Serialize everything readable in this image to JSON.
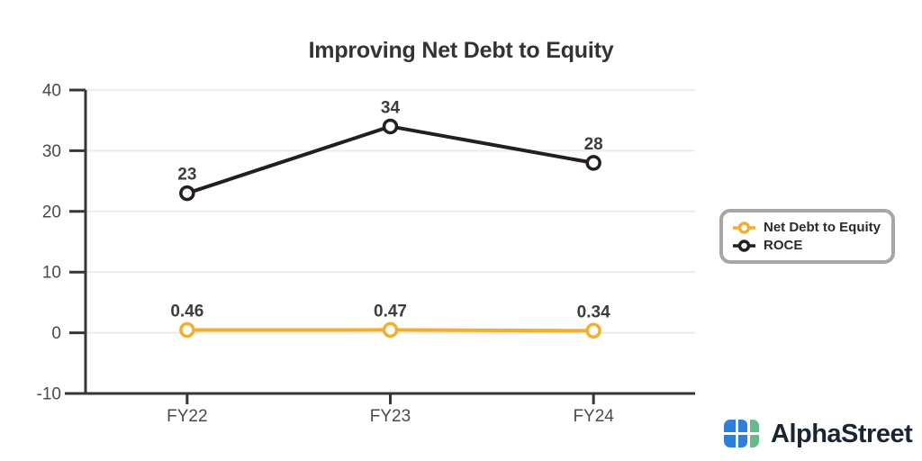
{
  "chart_data": {
    "type": "line",
    "title": "Improving Net Debt to Equity",
    "categories": [
      "FY22",
      "FY23",
      "FY24"
    ],
    "series": [
      {
        "name": "Net Debt to Equity",
        "values": [
          0.46,
          0.47,
          0.34
        ],
        "labels": [
          "0.46",
          "0.47",
          "0.34"
        ],
        "color": "#F2AE2F"
      },
      {
        "name": "ROCE",
        "values": [
          23,
          34,
          28
        ],
        "labels": [
          "23",
          "34",
          "28"
        ],
        "color": "#241F1E"
      }
    ],
    "xlabel": "",
    "ylabel": "",
    "ylim": [
      -10,
      40
    ],
    "yticks": [
      40,
      30,
      20,
      10,
      0,
      -10
    ],
    "grid": true,
    "legend_position": "right",
    "marker_style": "open-circle"
  },
  "legend": {
    "items": [
      {
        "label": "Net Debt to Equity",
        "color": "#F2AE2F"
      },
      {
        "label": "ROCE",
        "color": "#241F1E"
      }
    ]
  },
  "branding": {
    "logo_text": "AlphaStreet",
    "logo_blue": "#2E7FD9",
    "logo_green": "#68BA8C",
    "logo_text_color": "#1b2431"
  },
  "style_colors": {
    "axis": "#363636",
    "gridline": "#ececec",
    "tick_label": "#4a4a4a",
    "data_label": "#3d3d3d",
    "title": "#333333",
    "legend_border": "#a6a6a6"
  }
}
